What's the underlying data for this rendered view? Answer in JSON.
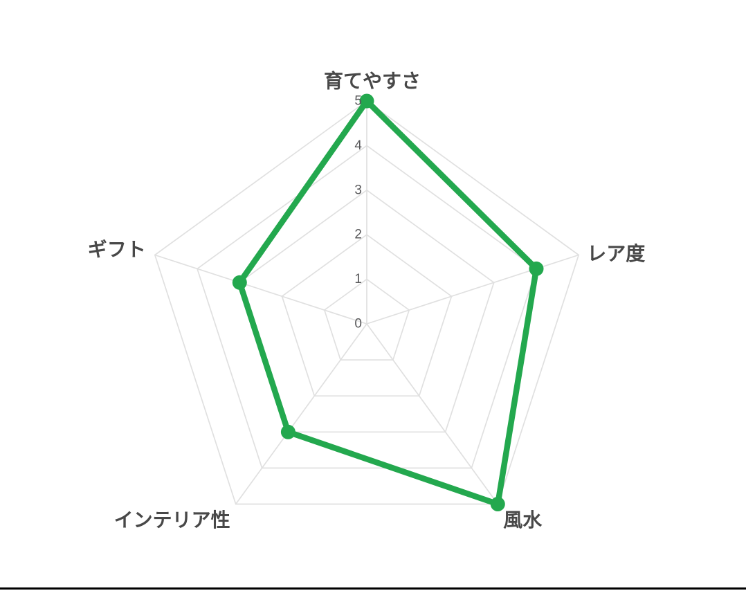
{
  "page": {
    "background": "#ffffff",
    "bottom_divider_color": "#000000"
  },
  "chart_data": {
    "type": "radar",
    "categories": [
      "育てやすさ",
      "レア度",
      "風水",
      "インテリア性",
      "ギフト"
    ],
    "values": [
      5,
      4,
      5,
      3,
      3
    ],
    "ticks": [
      "0",
      "1",
      "2",
      "3",
      "4",
      "5"
    ],
    "scale": {
      "min": 0,
      "max": 5,
      "step": 1
    },
    "grid": true,
    "legend": false,
    "title": "",
    "colors": {
      "line": "#23a84e",
      "point": "#23a84e",
      "grid": "#e0e0e0",
      "axis_label": "#484848",
      "tick_label": "#58585a"
    }
  }
}
